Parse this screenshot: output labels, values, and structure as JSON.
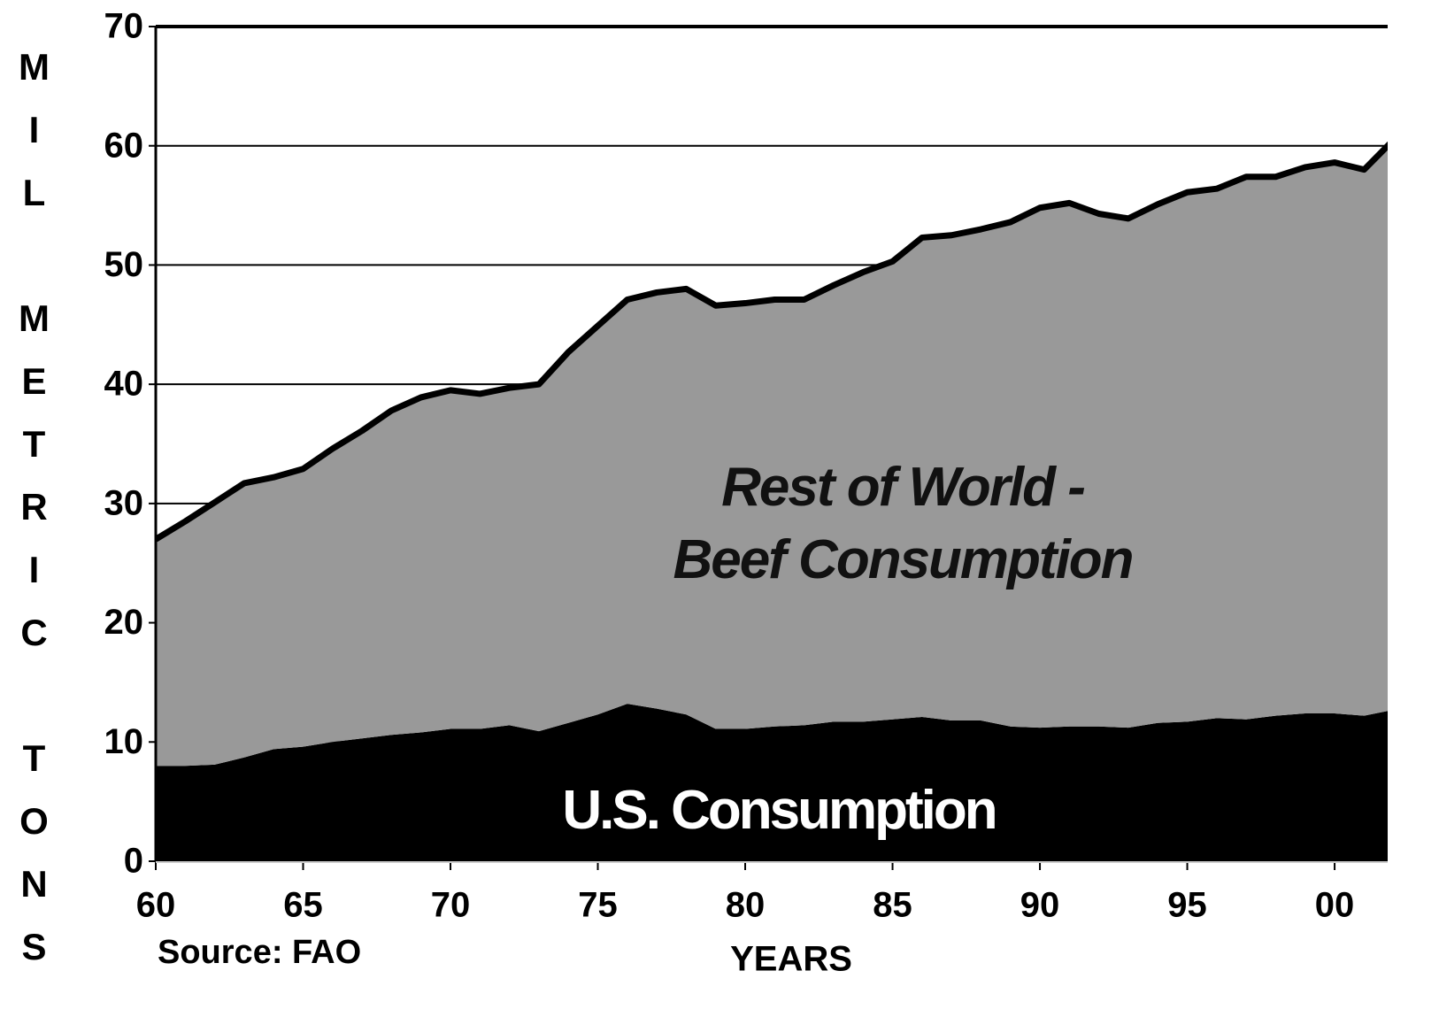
{
  "chart_data": {
    "type": "stacked-area",
    "y_label": "MIL METRIC TONS",
    "x_label": "YEARS",
    "source": "Source: FAO",
    "x": [
      1960,
      1961,
      1962,
      1963,
      1964,
      1965,
      1966,
      1967,
      1968,
      1969,
      1970,
      1971,
      1972,
      1973,
      1974,
      1975,
      1976,
      1977,
      1978,
      1979,
      1980,
      1981,
      1982,
      1983,
      1984,
      1985,
      1986,
      1987,
      1988,
      1989,
      1990,
      1991,
      1992,
      1993,
      1994,
      1995,
      1996,
      1997,
      1998,
      1999,
      2000,
      2001,
      2002
    ],
    "series": [
      {
        "name": "U.S. Consumption",
        "color": "#000000",
        "values": [
          8.0,
          8.0,
          8.1,
          8.7,
          9.4,
          9.6,
          10.0,
          10.3,
          10.6,
          10.8,
          11.1,
          11.1,
          11.4,
          10.9,
          11.6,
          12.3,
          13.2,
          12.8,
          12.3,
          11.1,
          11.1,
          11.3,
          11.4,
          11.7,
          11.7,
          11.9,
          12.1,
          11.8,
          11.8,
          11.3,
          11.2,
          11.3,
          11.3,
          11.2,
          11.6,
          11.7,
          12.0,
          11.9,
          12.2,
          12.4,
          12.4,
          12.2,
          12.7
        ]
      },
      {
        "name": "Rest of World -\nBeef Consumption",
        "color": "#999999",
        "values": [
          19.0,
          20.5,
          22.0,
          23.0,
          22.8,
          23.3,
          24.6,
          25.8,
          27.2,
          28.1,
          28.4,
          28.1,
          28.3,
          29.1,
          31.1,
          32.6,
          33.9,
          34.9,
          35.7,
          35.5,
          35.7,
          35.8,
          35.7,
          36.6,
          37.7,
          38.4,
          40.2,
          40.7,
          41.2,
          42.3,
          43.6,
          43.9,
          43.0,
          42.7,
          43.5,
          44.4,
          44.4,
          45.5,
          45.2,
          45.8,
          46.2,
          45.8,
          47.8
        ]
      }
    ],
    "xlim": [
      1960,
      2001.8
    ],
    "xticks": [
      {
        "value": 1960,
        "label": "60"
      },
      {
        "value": 1965,
        "label": "65"
      },
      {
        "value": 1970,
        "label": "70"
      },
      {
        "value": 1975,
        "label": "75"
      },
      {
        "value": 1980,
        "label": "80"
      },
      {
        "value": 1985,
        "label": "85"
      },
      {
        "value": 1990,
        "label": "90"
      },
      {
        "value": 1995,
        "label": "95"
      },
      {
        "value": 2000,
        "label": "00"
      }
    ],
    "ylim": [
      0,
      70
    ],
    "yticks": [
      0,
      10,
      20,
      30,
      40,
      50,
      60,
      70
    ],
    "grid": true
  }
}
